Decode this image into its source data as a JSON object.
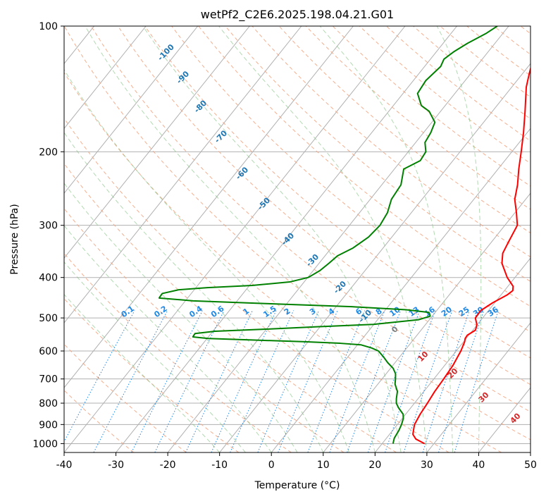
{
  "chart_data": {
    "type": "skew-t log-p diagram",
    "title": "wetPf2_C2E6.2025.198.04.21.G01",
    "xlabel": "Temperature (°C)",
    "ylabel": "Pressure (hPa)",
    "xlim": [
      -40,
      50
    ],
    "ylim": [
      1050,
      100
    ],
    "y_scale": "log",
    "grid": true,
    "x_ticks": [
      -40,
      -30,
      -20,
      -10,
      0,
      10,
      20,
      30,
      40,
      50
    ],
    "y_ticks": [
      100,
      200,
      300,
      400,
      500,
      600,
      700,
      800,
      900,
      1000
    ],
    "isotherms": {
      "interval": 10,
      "style": "solid gray, skewed"
    },
    "dry_adiabat_labels": [
      "-100",
      "-90",
      "-80",
      "-70",
      "-60",
      "-50",
      "-40",
      "-30",
      "-20",
      "-10",
      "0",
      "10",
      "20",
      "30",
      "40"
    ],
    "moist_adiabats": {
      "style": "dashed green"
    },
    "mixing_ratio_labels": [
      "0.1",
      "0.2",
      "0.4",
      "0.6",
      "1",
      "1.5",
      "2",
      "3",
      "4",
      "6",
      "8",
      "10",
      "13",
      "16",
      "20",
      "25",
      "30",
      "36"
    ],
    "colors": {
      "temperature": "#ff0000",
      "dewpoint": "#008000",
      "dry_adiabat_line": "#f4a582",
      "dry_adiabat_label_cold": "#1f77b4",
      "dry_adiabat_label_zero": "#808080",
      "dry_adiabat_label_warm": "#d62728",
      "mixing_ratio": "#1e88e5",
      "moist_adiabat": "#7fbf7f",
      "isotherm": "#b0b0b0"
    },
    "series": [
      {
        "key": "temperature",
        "points": [
          [
            1000,
            28.2
          ],
          [
            975,
            25.8
          ],
          [
            950,
            24.5
          ],
          [
            925,
            23.9
          ],
          [
            900,
            23.3
          ],
          [
            850,
            22.8
          ],
          [
            800,
            22.5
          ],
          [
            750,
            22.1
          ],
          [
            700,
            21.9
          ],
          [
            650,
            21.6
          ],
          [
            600,
            20.9
          ],
          [
            570,
            20.2
          ],
          [
            560,
            19.8
          ],
          [
            550,
            19.7
          ],
          [
            535,
            20.5
          ],
          [
            520,
            20.0
          ],
          [
            500,
            18.6
          ],
          [
            480,
            18.5
          ],
          [
            460,
            19.6
          ],
          [
            440,
            21.2
          ],
          [
            430,
            21.6
          ],
          [
            420,
            21.0
          ],
          [
            400,
            18.5
          ],
          [
            370,
            15.3
          ],
          [
            350,
            13.9
          ],
          [
            330,
            13.3
          ],
          [
            300,
            12.4
          ],
          [
            280,
            10.3
          ],
          [
            260,
            7.9
          ],
          [
            240,
            6.2
          ],
          [
            220,
            4.0
          ],
          [
            200,
            1.8
          ],
          [
            180,
            -0.7
          ],
          [
            160,
            -3.7
          ],
          [
            140,
            -7.2
          ],
          [
            130,
            -8.7
          ],
          [
            120,
            -10.2
          ],
          [
            112,
            -11.2
          ],
          [
            106,
            -10.9
          ],
          [
            100,
            -10.6
          ]
        ]
      },
      {
        "key": "dewpoint",
        "points": [
          [
            1000,
            22.1
          ],
          [
            970,
            21.5
          ],
          [
            930,
            21.2
          ],
          [
            900,
            20.8
          ],
          [
            870,
            20.2
          ],
          [
            850,
            19.5
          ],
          [
            820,
            17.6
          ],
          [
            800,
            16.5
          ],
          [
            780,
            15.8
          ],
          [
            750,
            14.9
          ],
          [
            720,
            13.3
          ],
          [
            700,
            12.6
          ],
          [
            680,
            11.8
          ],
          [
            660,
            10.5
          ],
          [
            640,
            8.6
          ],
          [
            620,
            6.9
          ],
          [
            600,
            5.0
          ],
          [
            590,
            3.2
          ],
          [
            580,
            0.7
          ],
          [
            575,
            -3.6
          ],
          [
            570,
            -10.6
          ],
          [
            565,
            -20.6
          ],
          [
            560,
            -29.8
          ],
          [
            555,
            -33.0
          ],
          [
            545,
            -33.1
          ],
          [
            538,
            -29.6
          ],
          [
            532,
            -20.1
          ],
          [
            525,
            -10.6
          ],
          [
            518,
            -0.1
          ],
          [
            505,
            7.9
          ],
          [
            495,
            9.6
          ],
          [
            485,
            8.8
          ],
          [
            478,
            4.0
          ],
          [
            470,
            -7.0
          ],
          [
            462,
            -24.0
          ],
          [
            455,
            -38.5
          ],
          [
            448,
            -45.5
          ],
          [
            437,
            -45.6
          ],
          [
            428,
            -43.0
          ],
          [
            423,
            -37.8
          ],
          [
            418,
            -29.5
          ],
          [
            410,
            -22.8
          ],
          [
            400,
            -19.9
          ],
          [
            385,
            -18.7
          ],
          [
            370,
            -18.1
          ],
          [
            355,
            -17.6
          ],
          [
            340,
            -15.8
          ],
          [
            320,
            -14.5
          ],
          [
            300,
            -14.1
          ],
          [
            280,
            -14.6
          ],
          [
            260,
            -15.9
          ],
          [
            240,
            -16.3
          ],
          [
            220,
            -18.2
          ],
          [
            210,
            -16.3
          ],
          [
            200,
            -16.6
          ],
          [
            190,
            -18.2
          ],
          [
            180,
            -18.6
          ],
          [
            170,
            -19.4
          ],
          [
            160,
            -22.2
          ],
          [
            155,
            -24.6
          ],
          [
            145,
            -27.2
          ],
          [
            135,
            -27.6
          ],
          [
            125,
            -26.9
          ],
          [
            120,
            -27.4
          ],
          [
            115,
            -26.6
          ],
          [
            110,
            -25.3
          ],
          [
            104,
            -23.2
          ],
          [
            100,
            -22.2
          ]
        ]
      }
    ]
  }
}
